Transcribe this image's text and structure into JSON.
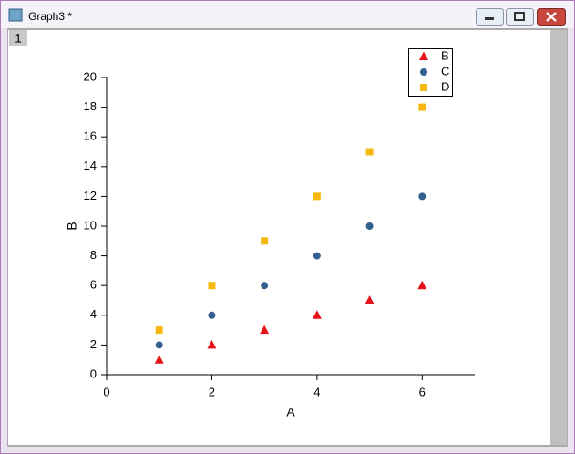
{
  "window": {
    "title": "Graph3 *",
    "tab": "1"
  },
  "chart_data": {
    "type": "scatter",
    "xlabel": "A",
    "ylabel": "B",
    "x": [
      1,
      2,
      3,
      4,
      5,
      6
    ],
    "series": [
      {
        "name": "B",
        "color": "#e8141b",
        "marker": "triangle",
        "values": [
          1,
          2,
          3,
          4,
          5,
          6
        ]
      },
      {
        "name": "C",
        "color": "#33608f",
        "marker": "circle",
        "values": [
          2,
          4,
          6,
          8,
          10,
          12
        ]
      },
      {
        "name": "D",
        "color": "#f7b90f",
        "marker": "square",
        "values": [
          3,
          6,
          9,
          12,
          15,
          18
        ]
      }
    ],
    "xlim": [
      0,
      7
    ],
    "xticks": [
      0,
      2,
      4,
      6
    ],
    "ylim": [
      0,
      20
    ],
    "yticks": [
      0,
      2,
      4,
      6,
      8,
      10,
      12,
      14,
      16,
      18,
      20
    ],
    "legend": "upper right"
  }
}
